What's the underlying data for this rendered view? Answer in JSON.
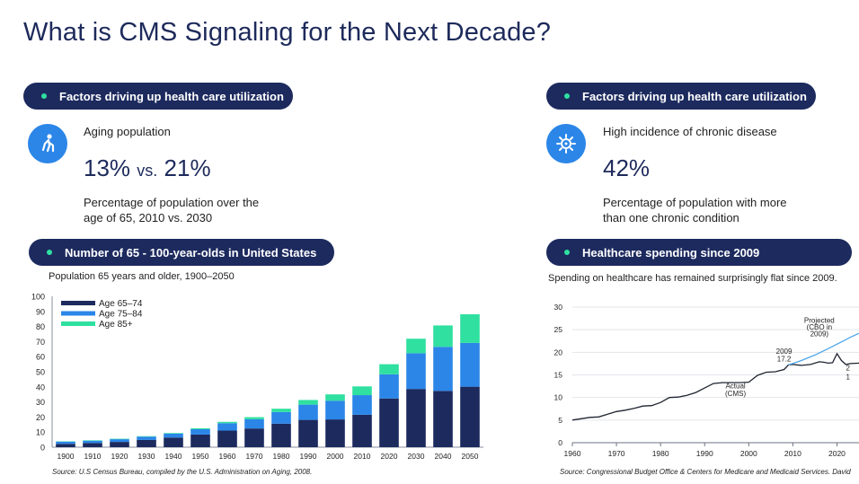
{
  "title": "What is CMS Signaling for the Next Decade?",
  "left": {
    "pill": "Factors driving up health care utilization",
    "icon": "elderly-person-icon",
    "stat_label": "Aging population",
    "stat_a": "13%",
    "stat_vs": "vs.",
    "stat_b": "21%",
    "desc": "Percentage of population over the age of 65, 2010 vs. 2030",
    "chart_pill": "Number of 65 - 100-year-olds in United States",
    "chart_caption": "Population 65 years and older, 1900–2050",
    "source": "Source: U.S Census Bureau, compiled by the U.S. Administration on Aging, 2008."
  },
  "right": {
    "pill": "Factors driving up health care utilization",
    "icon": "virus-icon",
    "stat_label": "High incidence of chronic disease",
    "stat": "42%",
    "desc": "Percentage of population with more than one chronic condition",
    "chart_pill": "Healthcare spending since 2009",
    "chart_caption": "Spending on healthcare has remained surprisingly flat since 2009.",
    "source": "Source: Congressional Budget Office & Centers for Medicare and Medicaid Services. David"
  },
  "colors": {
    "navy": "#1c2a5e",
    "blue": "#2b86e8",
    "mint": "#2fe0a0"
  },
  "chart_data": [
    {
      "type": "bar",
      "stacked": true,
      "categories": [
        "1900",
        "1910",
        "1920",
        "1930",
        "1940",
        "1950",
        "1960",
        "1970",
        "1980",
        "1990",
        "2000",
        "2010",
        "2020",
        "2030",
        "2040",
        "2050"
      ],
      "series": [
        {
          "name": "Age 65–74",
          "color": "#1c2a5e",
          "values": [
            2.2,
            2.8,
            3.5,
            4.8,
            6.4,
            8.4,
            11.0,
            12.4,
            15.6,
            18.1,
            18.4,
            21.5,
            32.3,
            38.6,
            37.3,
            40.1
          ]
        },
        {
          "name": "Age 75–84",
          "color": "#2b86e8",
          "values": [
            1.5,
            1.5,
            1.8,
            2.2,
            2.6,
            3.5,
            4.9,
            6.1,
            7.7,
            10.1,
            12.4,
            13.0,
            16.0,
            23.7,
            29.2,
            29.0
          ]
        },
        {
          "name": "Age 85+",
          "color": "#2fe0a0",
          "values": [
            0.2,
            0.3,
            0.3,
            0.3,
            0.4,
            0.6,
            0.9,
            1.4,
            2.2,
            3.1,
            4.2,
            5.8,
            6.7,
            9.6,
            14.2,
            19.0
          ]
        }
      ],
      "yticks": [
        0,
        10,
        20,
        30,
        40,
        50,
        60,
        70,
        80,
        90,
        100
      ],
      "ylim": [
        0,
        100
      ],
      "legend": "top-left",
      "grid": false
    },
    {
      "type": "line",
      "xlim": [
        1960,
        2025
      ],
      "ylim": [
        0,
        30
      ],
      "xticks": [
        1960,
        1970,
        1980,
        1990,
        2000,
        2010,
        2020
      ],
      "yticks": [
        0,
        5,
        10,
        15,
        20,
        25,
        30
      ],
      "grid": "horizontal",
      "series": [
        {
          "name": "Actual (CMS)",
          "color": "#1f2430",
          "points": [
            [
              1960,
              5.0
            ],
            [
              1962,
              5.3
            ],
            [
              1964,
              5.6
            ],
            [
              1966,
              5.7
            ],
            [
              1968,
              6.3
            ],
            [
              1970,
              6.9
            ],
            [
              1972,
              7.2
            ],
            [
              1974,
              7.6
            ],
            [
              1976,
              8.1
            ],
            [
              1978,
              8.2
            ],
            [
              1980,
              8.9
            ],
            [
              1982,
              10.0
            ],
            [
              1984,
              10.1
            ],
            [
              1986,
              10.5
            ],
            [
              1988,
              11.1
            ],
            [
              1990,
              12.1
            ],
            [
              1992,
              13.1
            ],
            [
              1994,
              13.3
            ],
            [
              1996,
              13.3
            ],
            [
              1998,
              13.3
            ],
            [
              2000,
              13.4
            ],
            [
              2002,
              14.9
            ],
            [
              2004,
              15.6
            ],
            [
              2006,
              15.7
            ],
            [
              2008,
              16.2
            ],
            [
              2009,
              17.2
            ],
            [
              2010,
              17.3
            ],
            [
              2012,
              17.1
            ],
            [
              2014,
              17.3
            ],
            [
              2016,
              17.9
            ],
            [
              2017,
              17.8
            ],
            [
              2018,
              17.6
            ],
            [
              2019,
              17.7
            ],
            [
              2020,
              19.7
            ],
            [
              2021,
              18.2
            ],
            [
              2022,
              17.3
            ],
            [
              2023,
              17.5
            ],
            [
              2025,
              17.6
            ]
          ]
        },
        {
          "name": "Projected (CBO in 2009)",
          "color": "#4fa6e8",
          "points": [
            [
              2009,
              17.2
            ],
            [
              2012,
              18.2
            ],
            [
              2015,
              19.4
            ],
            [
              2018,
              20.8
            ],
            [
              2021,
              22.3
            ],
            [
              2023,
              23.3
            ],
            [
              2025,
              24.2
            ]
          ]
        }
      ],
      "annotations": [
        {
          "text": "Projected",
          "x": 2016,
          "y": 26.5
        },
        {
          "text": "(CBO in",
          "x": 2016,
          "y": 25.0
        },
        {
          "text": "2009)",
          "x": 2016,
          "y": 23.5
        },
        {
          "text": "2009",
          "x": 2008,
          "y": 19.7
        },
        {
          "text": "17.2",
          "x": 2008,
          "y": 18.0
        },
        {
          "text": "Actual",
          "x": 1997,
          "y": 12.0
        },
        {
          "text": "(CMS)",
          "x": 1997,
          "y": 10.3
        },
        {
          "text": "2",
          "x": 2022.5,
          "y": 16.0
        },
        {
          "text": "1",
          "x": 2022.5,
          "y": 14.0
        }
      ]
    }
  ]
}
